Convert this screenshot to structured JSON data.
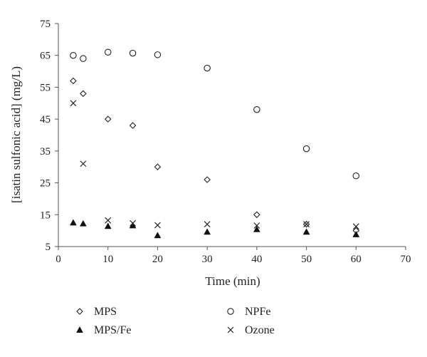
{
  "chart_data": {
    "type": "scatter",
    "xlabel": "Time (min)",
    "ylabel": "[isatin sulfonic acid] (mg/L)",
    "xlim": [
      0,
      70
    ],
    "ylim": [
      5,
      75
    ],
    "xticks": [
      0,
      10,
      20,
      30,
      40,
      50,
      60,
      70
    ],
    "yticks": [
      5,
      15,
      25,
      35,
      45,
      55,
      65,
      75
    ],
    "grid": false,
    "legend_position": "bottom",
    "series": [
      {
        "name": "MPS",
        "marker": "diamond-open",
        "color": "#222222",
        "points": [
          [
            3,
            57
          ],
          [
            5,
            53
          ],
          [
            10,
            45
          ],
          [
            15,
            43
          ],
          [
            20,
            30
          ],
          [
            30,
            26
          ],
          [
            40,
            15
          ],
          [
            50,
            12
          ],
          [
            60,
            10
          ]
        ]
      },
      {
        "name": "NPFe",
        "marker": "circle-open",
        "color": "#222222",
        "points": [
          [
            3,
            65
          ],
          [
            5,
            64
          ],
          [
            10,
            66
          ],
          [
            15,
            65.7
          ],
          [
            20,
            65.2
          ],
          [
            30,
            61
          ],
          [
            40,
            48
          ],
          [
            50,
            35.7
          ],
          [
            60,
            27.2
          ]
        ]
      },
      {
        "name": "MPS/Fe",
        "marker": "triangle-filled",
        "color": "#111111",
        "points": [
          [
            3,
            12.5
          ],
          [
            5,
            12.2
          ],
          [
            10,
            11.4
          ],
          [
            15,
            11.6
          ],
          [
            20,
            8.5
          ],
          [
            30,
            9.6
          ],
          [
            40,
            10.4
          ],
          [
            50,
            9.6
          ],
          [
            60,
            8.8
          ]
        ]
      },
      {
        "name": "Ozone",
        "marker": "x",
        "color": "#222222",
        "points": [
          [
            3,
            50
          ],
          [
            5,
            31
          ],
          [
            10,
            13.2
          ],
          [
            15,
            12.3
          ],
          [
            20,
            11.7
          ],
          [
            30,
            12
          ],
          [
            40,
            11.6
          ],
          [
            50,
            12
          ],
          [
            60,
            11.3
          ]
        ]
      }
    ]
  }
}
